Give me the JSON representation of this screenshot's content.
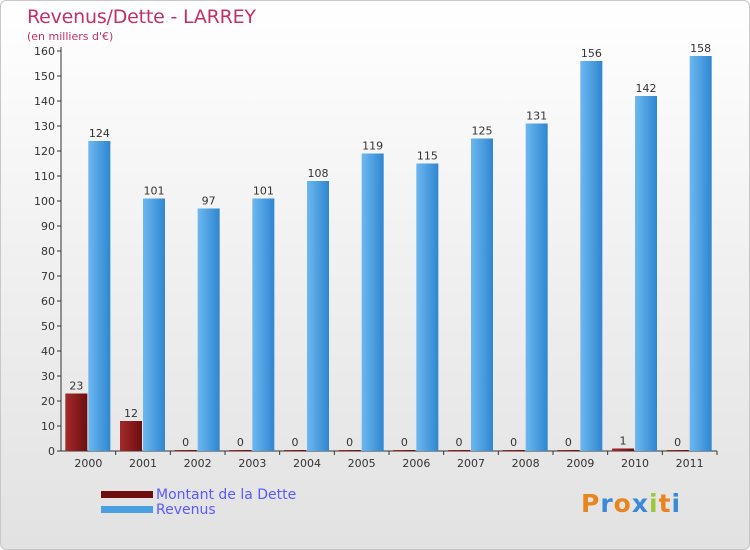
{
  "title": "Revenus/Dette - LARREY",
  "subtitle": "(en milliers d'€)",
  "chart_data": {
    "type": "bar",
    "categories": [
      "2000",
      "2001",
      "2002",
      "2003",
      "2004",
      "2005",
      "2006",
      "2007",
      "2008",
      "2009",
      "2010",
      "2011"
    ],
    "series": [
      {
        "name": "Montant de la Dette",
        "values": [
          23,
          12,
          0,
          0,
          0,
          0,
          0,
          0,
          0,
          0,
          1,
          0
        ],
        "color": "#8b1a1a"
      },
      {
        "name": "Revenus",
        "values": [
          124,
          101,
          97,
          101,
          108,
          119,
          115,
          125,
          131,
          156,
          142,
          158
        ],
        "color": "#4a9fe0"
      }
    ],
    "ylim": [
      0,
      160
    ],
    "yticks": [
      0,
      10,
      20,
      30,
      40,
      50,
      60,
      70,
      80,
      90,
      100,
      110,
      120,
      130,
      140,
      150,
      160
    ],
    "grid": false,
    "legend": "bottom-left"
  },
  "legend": {
    "debt_label": "Montant de la Dette",
    "revenue_label": "Revenus",
    "debt_color": "#6e0f0f",
    "revenue_color": "#4a9fe0"
  },
  "logo": {
    "letters": [
      "P",
      "r",
      "o",
      "x",
      "i",
      "t",
      "i"
    ],
    "colors": [
      "#e8851e",
      "#3a8ad8",
      "#e8851e",
      "#3a8ad8",
      "#9bc838",
      "#e8851e",
      "#3a8ad8"
    ]
  }
}
